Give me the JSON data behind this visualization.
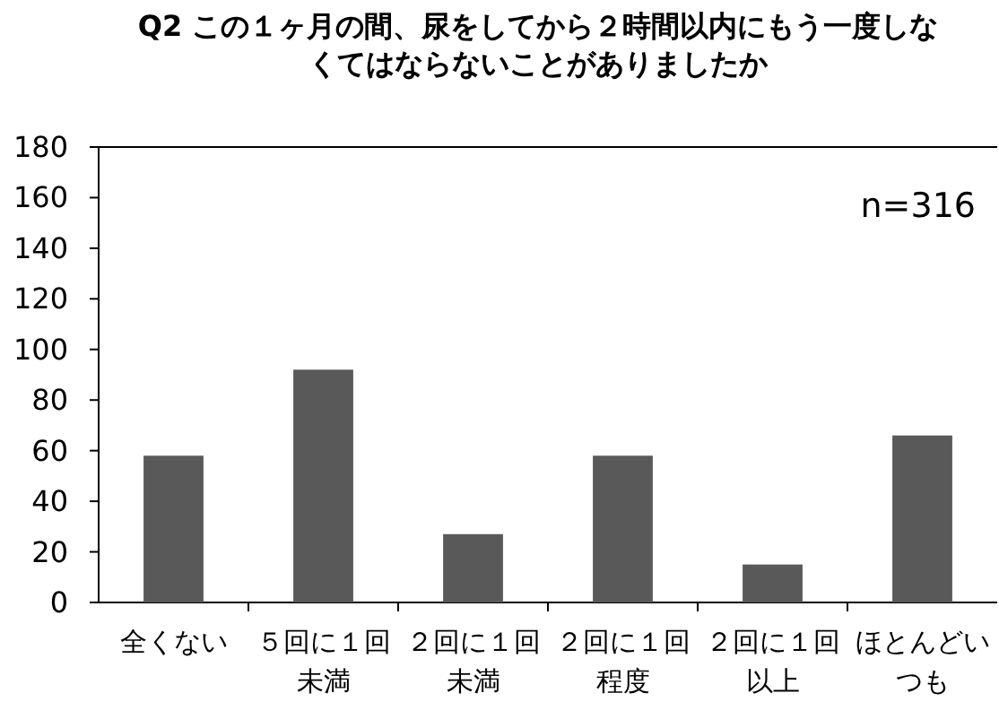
{
  "chart_data": {
    "type": "bar",
    "title": "Q2 この１ヶ月の間、尿をしてから２時間以内にもう一度しなくてはならないことがありましたか",
    "categories": [
      "全くない",
      "５回に１回未満",
      "２回に１回未満",
      "２回に１回程度",
      "２回に１回以上",
      "ほとんどいつも"
    ],
    "values": [
      58,
      92,
      27,
      58,
      15,
      66
    ],
    "color": "#595959",
    "ylim": [
      0,
      180
    ],
    "yticks": [
      0,
      20,
      40,
      60,
      80,
      100,
      120,
      140,
      160,
      180
    ],
    "annotations": [
      "n=316"
    ]
  }
}
